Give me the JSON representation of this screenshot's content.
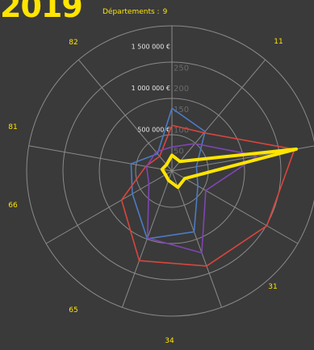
{
  "header": {
    "year": "2019",
    "departements_label": "Départements :",
    "departements_count": "9"
  },
  "colors": {
    "accent": "#ffe500",
    "grid": "#8a8a8a"
  },
  "chart_data": {
    "type": "radar",
    "title": "",
    "categories": [
      "",
      "11",
      "",
      "31",
      "34",
      "65",
      "66",
      "81",
      "82"
    ],
    "radial_axis_left": {
      "ticks": [
        "500 000 €",
        "1 000 000 €",
        "1 500 000 €"
      ],
      "values": [
        500000,
        1000000,
        1500000
      ],
      "max": 1750000
    },
    "radial_axis_right": {
      "ticks": [
        "50",
        "100",
        "150",
        "200",
        "250"
      ],
      "values": [
        50,
        100,
        150,
        200,
        250
      ],
      "max": 350
    },
    "series": [
      {
        "values": [
          755000,
          620000,
          300000,
          360000,
          780000,
          870000,
          550000,
          500000,
          270000
        ],
        "color": "#4b7bc4"
      },
      {
        "values": [
          550000,
          600000,
          1500000,
          1320000,
          1220000,
          1150000,
          700000,
          320000,
          230000
        ],
        "color": "#d9453d"
      },
      {
        "values": [
          290000,
          430000,
          1050000,
          470000,
          1050000,
          860000,
          320000,
          310000,
          300000
        ],
        "color": "#7e45b5"
      },
      {
        "values": [
          190000,
          150000,
          1520000,
          180000,
          210000,
          120000,
          90000,
          120000,
          100000
        ],
        "color": "#ffe500",
        "highlight": true
      }
    ]
  }
}
